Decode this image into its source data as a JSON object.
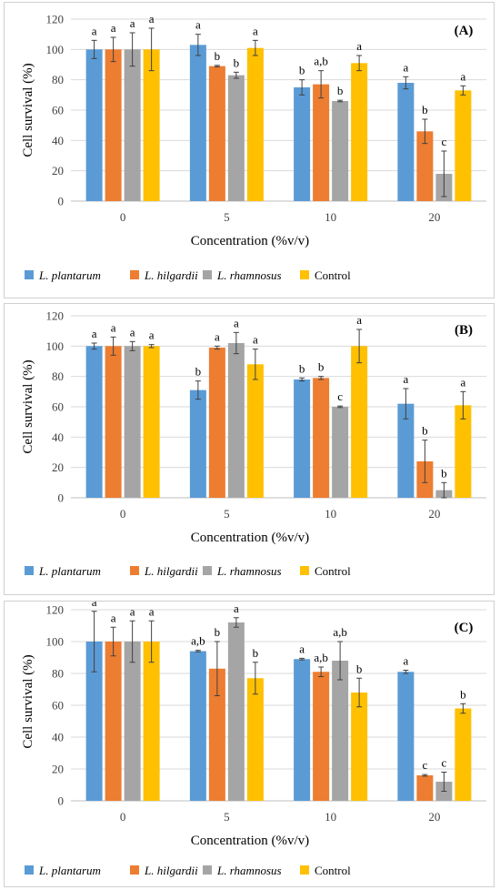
{
  "chart_data": [
    {
      "type": "bar",
      "title": "(A)",
      "xlabel": "Concentration (%v/v)",
      "ylabel": "Cell survival (%)",
      "ylim": [
        0,
        120
      ],
      "yticks": [
        0,
        20,
        40,
        60,
        80,
        100,
        120
      ],
      "categories": [
        "0",
        "5",
        "10",
        "20"
      ],
      "legend_position": "bottom",
      "series": [
        {
          "name": "L. plantarum",
          "color": "#5b9bd5",
          "values": [
            100,
            103,
            75,
            78
          ],
          "errors": [
            6,
            7,
            5,
            4
          ],
          "letters": [
            "a",
            "a",
            "b",
            "a"
          ]
        },
        {
          "name": "L. hilgardii",
          "color": "#ed7d31",
          "values": [
            100,
            89,
            77,
            46
          ],
          "errors": [
            8,
            0.5,
            9,
            8
          ],
          "letters": [
            "a",
            "b",
            "a,b",
            "b"
          ]
        },
        {
          "name": "L. rhamnosus",
          "color": "#a5a5a5",
          "values": [
            100,
            83,
            66,
            18
          ],
          "errors": [
            11,
            2,
            0.5,
            15
          ],
          "letters": [
            "a",
            "b",
            "b",
            "c"
          ]
        },
        {
          "name": "Control",
          "color": "#ffc000",
          "values": [
            100,
            101,
            91,
            73
          ],
          "errors": [
            14,
            5,
            5,
            3
          ],
          "letters": [
            "a",
            "a",
            "a",
            "a"
          ]
        }
      ]
    },
    {
      "type": "bar",
      "title": "(B)",
      "xlabel": "Concentration (%v/v)",
      "ylabel": "Cell survival (%)",
      "ylim": [
        0,
        120
      ],
      "yticks": [
        0,
        20,
        40,
        60,
        80,
        100,
        120
      ],
      "categories": [
        "0",
        "5",
        "10",
        "20"
      ],
      "legend_position": "bottom",
      "series": [
        {
          "name": "L. plantarum",
          "color": "#5b9bd5",
          "values": [
            100,
            71,
            78,
            62
          ],
          "errors": [
            2,
            6,
            1,
            10
          ],
          "letters": [
            "a",
            "b",
            "b",
            "a"
          ]
        },
        {
          "name": "L. hilgardii",
          "color": "#ed7d31",
          "values": [
            100,
            99,
            79,
            24
          ],
          "errors": [
            6,
            1,
            1,
            14
          ],
          "letters": [
            "a",
            "a",
            "b",
            "b"
          ]
        },
        {
          "name": "L. rhamnosus",
          "color": "#a5a5a5",
          "values": [
            100,
            102,
            60,
            5
          ],
          "errors": [
            3,
            7,
            0.5,
            5
          ],
          "letters": [
            "a",
            "a",
            "c",
            "b"
          ]
        },
        {
          "name": "Control",
          "color": "#ffc000",
          "values": [
            100,
            88,
            100,
            61
          ],
          "errors": [
            1,
            10,
            11,
            9
          ],
          "letters": [
            "a",
            "a",
            "a",
            "a"
          ]
        }
      ]
    },
    {
      "type": "bar",
      "title": "(C)",
      "xlabel": "Concentration (%v/v)",
      "ylabel": "Cell survival (%)",
      "ylim": [
        0,
        120
      ],
      "yticks": [
        0,
        20,
        40,
        60,
        80,
        100,
        120
      ],
      "categories": [
        "0",
        "5",
        "10",
        "20"
      ],
      "legend_position": "bottom",
      "series": [
        {
          "name": "L. plantarum",
          "color": "#5b9bd5",
          "values": [
            100,
            94,
            89,
            81
          ],
          "errors": [
            19,
            0.5,
            0.5,
            1
          ],
          "letters": [
            "a",
            "a,b",
            "a",
            "a"
          ]
        },
        {
          "name": "L. hilgardii",
          "color": "#ed7d31",
          "values": [
            100,
            83,
            81,
            16
          ],
          "errors": [
            9,
            17,
            3,
            0.5
          ],
          "letters": [
            "a",
            "b",
            "a,b",
            "c"
          ]
        },
        {
          "name": "L. rhamnosus",
          "color": "#a5a5a5",
          "values": [
            100,
            112,
            88,
            12
          ],
          "errors": [
            13,
            3,
            12,
            6
          ],
          "letters": [
            "a",
            "a",
            "a,b",
            "c"
          ]
        },
        {
          "name": "Control",
          "color": "#ffc000",
          "values": [
            100,
            77,
            68,
            58
          ],
          "errors": [
            13,
            10,
            9,
            3
          ],
          "letters": [
            "a",
            "b",
            "b",
            "b"
          ]
        }
      ]
    }
  ]
}
